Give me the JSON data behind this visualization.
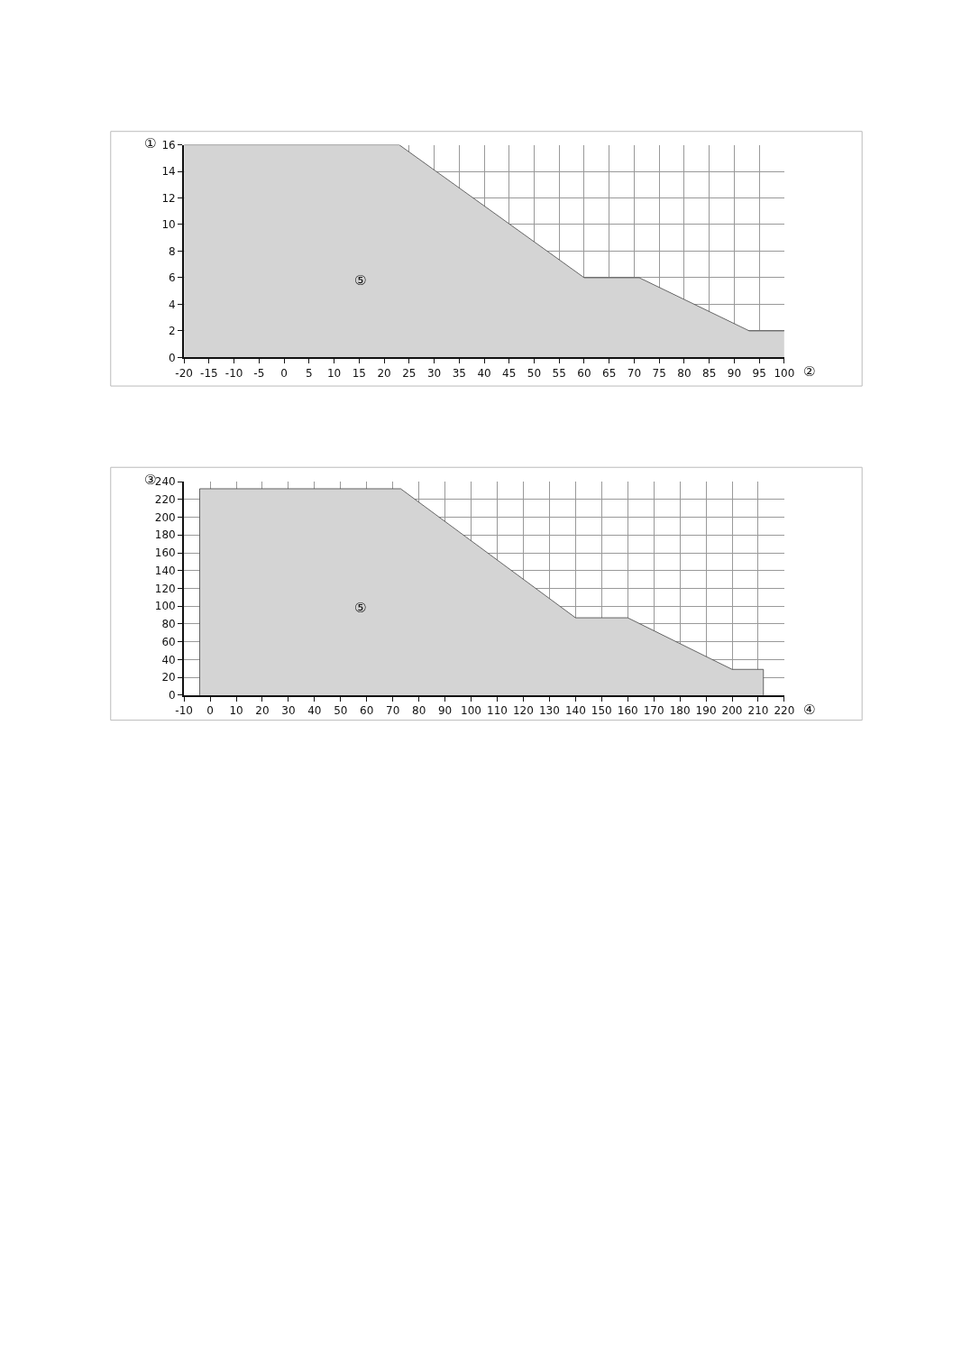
{
  "chart_data": [
    {
      "type": "area",
      "xlabel": "②",
      "ylabel": "①",
      "annotations": [
        "⑤"
      ],
      "series": [
        {
          "color": "#d4d4d4",
          "x": [
            -20,
            23,
            60,
            71,
            93,
            100
          ],
          "values": [
            16,
            16,
            6,
            6,
            2,
            2
          ]
        }
      ],
      "xlim": [
        -20,
        100
      ],
      "xticks": [
        -20,
        -15,
        -10,
        -5,
        0,
        5,
        10,
        15,
        20,
        25,
        30,
        35,
        40,
        45,
        50,
        55,
        60,
        65,
        70,
        75,
        80,
        85,
        90,
        95,
        100
      ],
      "ylim": [
        0,
        16
      ],
      "yticks": [
        0,
        2,
        4,
        6,
        8,
        10,
        12,
        14,
        16
      ],
      "grid": true
    },
    {
      "type": "area",
      "xlabel": "④",
      "ylabel": "③",
      "annotations": [
        "⑤"
      ],
      "series": [
        {
          "color": "#d4d4d4",
          "x": [
            -4,
            -4,
            73,
            140,
            160,
            200,
            212,
            212
          ],
          "values": [
            0,
            232,
            232,
            87,
            87,
            29,
            29,
            0
          ]
        }
      ],
      "xlim": [
        -10,
        220
      ],
      "xticks": [
        -10,
        0,
        10,
        20,
        30,
        40,
        50,
        60,
        70,
        80,
        90,
        100,
        110,
        120,
        130,
        140,
        150,
        160,
        170,
        180,
        190,
        200,
        210,
        220
      ],
      "ylim": [
        0,
        240
      ],
      "yticks": [
        0,
        20,
        40,
        60,
        80,
        100,
        120,
        140,
        160,
        180,
        200,
        220,
        240
      ],
      "grid": true
    }
  ]
}
